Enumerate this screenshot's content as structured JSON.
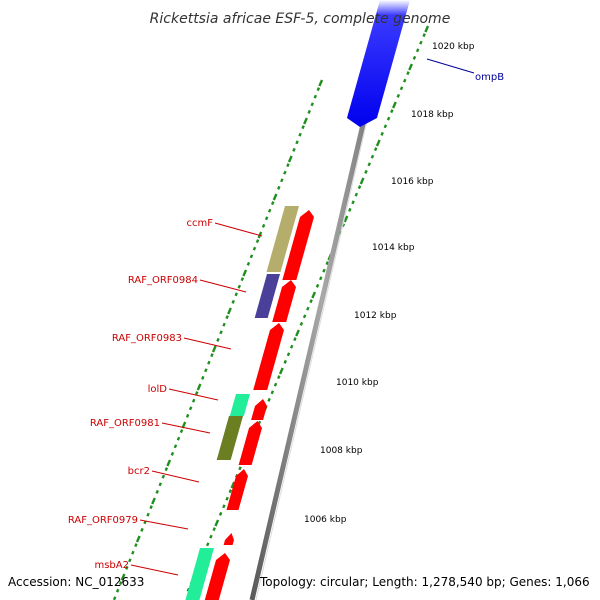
{
  "title": "Rickettsia africae ESF-5, complete genome",
  "accession": "Accession: NC_012633",
  "topology": "Topology: circular; Length: 1,278,540 bp; Genes: 1,066",
  "ticks": [
    "1020 kbp",
    "1018 kbp",
    "1016 kbp",
    "1014 kbp",
    "1012 kbp",
    "1010 kbp",
    "1008 kbp",
    "1006 kbp"
  ],
  "colors": {
    "backbone": "#8c8c8c",
    "tick": "#1e8f1e",
    "label_red": "#cc0000",
    "label_blue": "#000099",
    "cds_red": "#ff0000",
    "cds_blue": "#0000ff",
    "khaki": "#b5ad6b",
    "slate": "#4a3f99",
    "olive": "#6b7f22",
    "aqua": "#22ee99"
  },
  "genes": [
    {
      "name": "ompB",
      "color": "blue"
    },
    {
      "name": "ccmF",
      "color": "red"
    },
    {
      "name": "RAF_ORF0984",
      "color": "red"
    },
    {
      "name": "RAF_ORF0983",
      "color": "red"
    },
    {
      "name": "lolD",
      "color": "red"
    },
    {
      "name": "RAF_ORF0981",
      "color": "red"
    },
    {
      "name": "bcr2",
      "color": "red"
    },
    {
      "name": "RAF_ORF0979",
      "color": "red"
    },
    {
      "name": "msbA2",
      "color": "red"
    }
  ]
}
